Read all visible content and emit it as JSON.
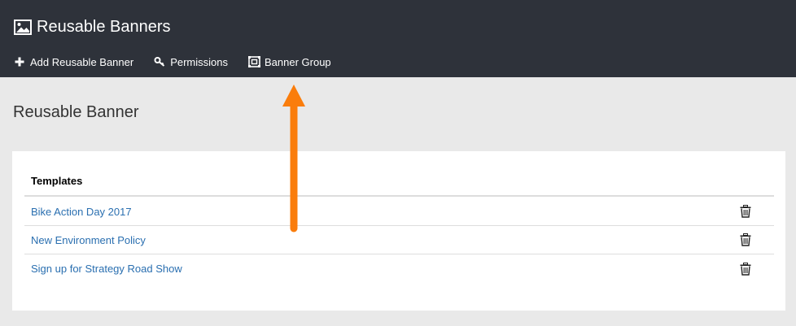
{
  "app": {
    "title": "Reusable Banners",
    "title_icon": "image-icon"
  },
  "toolbar": {
    "items": [
      {
        "label": "Add Reusable Banner",
        "icon": "plus-icon"
      },
      {
        "label": "Permissions",
        "icon": "key-icon"
      },
      {
        "label": "Banner Group",
        "icon": "banner-group-icon"
      }
    ]
  },
  "main": {
    "heading": "Reusable Banner",
    "table": {
      "header": "Templates",
      "rows": [
        {
          "name": "Bike Action Day 2017",
          "action_icon": "trash-icon"
        },
        {
          "name": "New Environment Policy",
          "action_icon": "trash-icon"
        },
        {
          "name": "Sign up for Strategy Road Show",
          "action_icon": "trash-icon"
        }
      ]
    }
  },
  "colors": {
    "topbar": "#2e323a",
    "background": "#e9e9e9",
    "link": "#2a6fb0",
    "annotation_arrow": "#fa7d0c"
  }
}
